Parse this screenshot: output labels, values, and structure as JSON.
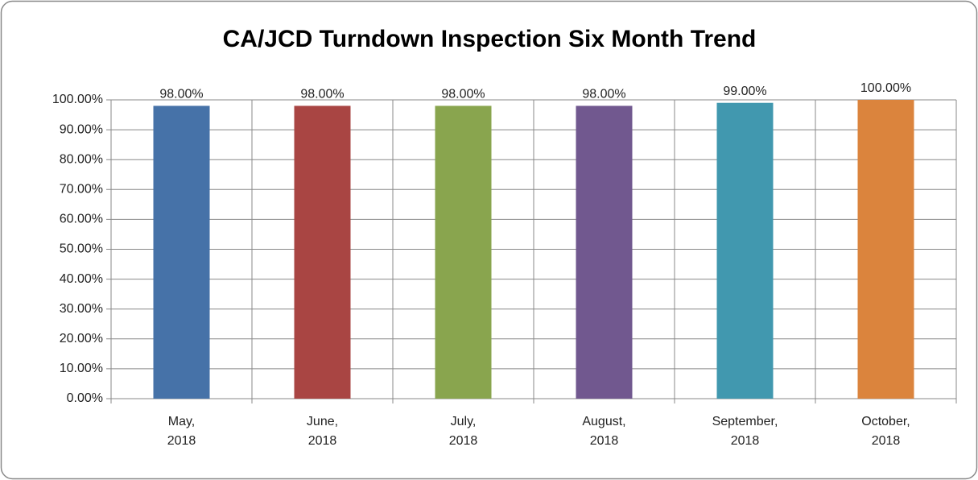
{
  "chart_data": {
    "type": "bar",
    "title": "CA/JCD Turndown Inspection Six Month Trend",
    "categories": [
      "May, 2018",
      "June, 2018",
      "July, 2018",
      "August, 2018",
      "September, 2018",
      "October, 2018"
    ],
    "values": [
      98,
      98,
      98,
      98,
      99,
      100
    ],
    "value_labels": [
      "98.00%",
      "98.00%",
      "98.00%",
      "98.00%",
      "99.00%",
      "100.00%"
    ],
    "colors": [
      "#4672a8",
      "#a94543",
      "#89a54e",
      "#71588f",
      "#4198af",
      "#db843d"
    ],
    "ylim": [
      0,
      100
    ],
    "yticks": [
      {
        "value": 0,
        "label": "0.00%"
      },
      {
        "value": 10,
        "label": "10.00%"
      },
      {
        "value": 20,
        "label": "20.00%"
      },
      {
        "value": 30,
        "label": "30.00%"
      },
      {
        "value": 40,
        "label": "40.00%"
      },
      {
        "value": 50,
        "label": "50.00%"
      },
      {
        "value": 60,
        "label": "60.00%"
      },
      {
        "value": 70,
        "label": "70.00%"
      },
      {
        "value": 80,
        "label": "80.00%"
      },
      {
        "value": 90,
        "label": "90.00%"
      },
      {
        "value": 100,
        "label": "100.00%"
      }
    ],
    "grid": true
  }
}
